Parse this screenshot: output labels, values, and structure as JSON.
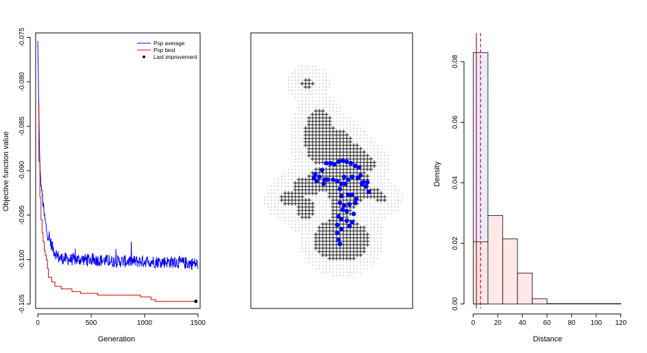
{
  "chart_data": [
    {
      "type": "line",
      "xlabel": "Generation",
      "ylabel": "Objective function value",
      "xlim": [
        -20,
        1520
      ],
      "ylim": [
        -0.1055,
        -0.0745
      ],
      "xticks": [
        0,
        500,
        1000,
        1500
      ],
      "yticks": [
        -0.075,
        -0.08,
        -0.085,
        -0.09,
        -0.095,
        -0.1,
        -0.105
      ],
      "ytick_labels": [
        "-0.075",
        "-0.080",
        "-0.085",
        "-0.090",
        "-0.095",
        "-0.100",
        "-0.105"
      ],
      "legend": {
        "placement": "top-right",
        "entries": [
          {
            "label": "Pop average",
            "color": "#0000ff",
            "kind": "line"
          },
          {
            "label": "Pop best",
            "color": "#cc0000",
            "kind": "line"
          },
          {
            "label": "Last improvement",
            "color": "#000000",
            "kind": "point"
          }
        ]
      },
      "series": [
        {
          "name": "Pop average",
          "color": "#0000ff",
          "envelope": [
            [
              0,
              -0.0755
            ],
            [
              5,
              -0.0795
            ],
            [
              10,
              -0.083
            ],
            [
              15,
              -0.087
            ],
            [
              20,
              -0.0895
            ],
            [
              30,
              -0.0915
            ],
            [
              40,
              -0.0925
            ],
            [
              60,
              -0.095
            ],
            [
              80,
              -0.0965
            ],
            [
              100,
              -0.0975
            ],
            [
              150,
              -0.099
            ],
            [
              200,
              -0.0998
            ],
            [
              300,
              -0.1
            ],
            [
              500,
              -0.1
            ],
            [
              700,
              -0.1002
            ],
            [
              1000,
              -0.1002
            ],
            [
              1300,
              -0.1003
            ],
            [
              1500,
              -0.1005
            ]
          ],
          "noise_amplitude": 0.0007
        },
        {
          "name": "Pop best",
          "color": "#cc0000",
          "steps": [
            [
              0,
              -0.0825
            ],
            [
              10,
              -0.089
            ],
            [
              20,
              -0.093
            ],
            [
              30,
              -0.0955
            ],
            [
              40,
              -0.097
            ],
            [
              50,
              -0.098
            ],
            [
              60,
              -0.099
            ],
            [
              70,
              -0.0995
            ],
            [
              80,
              -0.1
            ],
            [
              90,
              -0.101
            ],
            [
              100,
              -0.102
            ],
            [
              130,
              -0.1025
            ],
            [
              160,
              -0.103
            ],
            [
              220,
              -0.1033
            ],
            [
              320,
              -0.1036
            ],
            [
              400,
              -0.1038
            ],
            [
              560,
              -0.104
            ],
            [
              900,
              -0.104
            ],
            [
              960,
              -0.1042
            ],
            [
              1060,
              -0.1045
            ],
            [
              1100,
              -0.1047
            ],
            [
              1480,
              -0.1047
            ]
          ]
        }
      ],
      "last_improvement": {
        "x": 1480,
        "y": -0.1047
      }
    },
    {
      "type": "scatter",
      "description_free": true,
      "marker_colors": {
        "grid": "#999999",
        "sites": "#000000",
        "selected": "#0000ff"
      },
      "selected_points": [
        [
          460,
          254
        ],
        [
          458,
          260
        ],
        [
          462,
          264
        ],
        [
          466,
          258
        ],
        [
          470,
          248
        ],
        [
          476,
          238
        ],
        [
          482,
          238
        ],
        [
          488,
          240
        ],
        [
          494,
          236
        ],
        [
          500,
          234
        ],
        [
          506,
          236
        ],
        [
          512,
          238
        ],
        [
          518,
          242
        ],
        [
          524,
          244
        ],
        [
          526,
          256
        ],
        [
          522,
          260
        ],
        [
          514,
          258
        ],
        [
          508,
          262
        ],
        [
          504,
          268
        ],
        [
          498,
          268
        ],
        [
          492,
          264
        ],
        [
          486,
          262
        ],
        [
          478,
          262
        ],
        [
          472,
          268
        ],
        [
          474,
          262
        ],
        [
          496,
          276
        ],
        [
          498,
          286
        ],
        [
          496,
          296
        ],
        [
          502,
          300
        ],
        [
          510,
          298
        ],
        [
          518,
          296
        ],
        [
          520,
          290
        ],
        [
          514,
          284
        ],
        [
          508,
          284
        ],
        [
          528,
          268
        ],
        [
          534,
          272
        ],
        [
          538,
          280
        ],
        [
          536,
          266
        ],
        [
          530,
          266
        ],
        [
          502,
          258
        ],
        [
          494,
          316
        ],
        [
          498,
          320
        ],
        [
          506,
          322
        ],
        [
          514,
          324
        ],
        [
          510,
          330
        ],
        [
          498,
          334
        ],
        [
          492,
          340
        ],
        [
          494,
          350
        ],
        [
          496,
          356
        ],
        [
          492,
          328
        ],
        [
          500,
          306
        ],
        [
          506,
          308
        ],
        [
          516,
          312
        ]
      ]
    },
    {
      "type": "bar",
      "xlabel": "Distance",
      "ylabel": "Density",
      "xlim": [
        -3,
        124
      ],
      "ylim": [
        -0.0015,
        0.0895
      ],
      "xticks": [
        0,
        20,
        40,
        60,
        80,
        100,
        120
      ],
      "yticks": [
        0.0,
        0.02,
        0.04,
        0.06,
        0.08
      ],
      "ytick_labels": [
        "0.00",
        "0.02",
        "0.04",
        "0.06",
        "0.08"
      ],
      "histogram_1": {
        "bin_edges": [
          0,
          12
        ],
        "values": [
          0.083
        ],
        "fill": "#e8e8ff"
      },
      "histogram_2": {
        "bin_edges": [
          0,
          12,
          24,
          36,
          48,
          60,
          120
        ],
        "values": [
          0.0205,
          0.0292,
          0.0215,
          0.0102,
          0.0017,
          0.0001
        ],
        "fill": "#ffe4e4"
      },
      "vlines": [
        {
          "x": 2.6,
          "color": "#aa1111",
          "style": "solid"
        },
        {
          "x": 6.0,
          "color": "#aa1111",
          "style": "dashed"
        }
      ]
    }
  ]
}
